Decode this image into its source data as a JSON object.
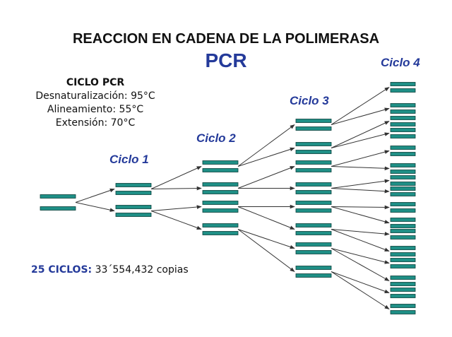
{
  "title": "REACCION EN CADENA DE LA POLIMERASA",
  "subtitle": "PCR",
  "conditions": {
    "heading": "CICLO PCR",
    "lines": [
      "Desnaturalización: 95°C",
      "Alineamiento: 55°C",
      "Extensión: 70°C"
    ]
  },
  "cycles": [
    "Ciclo 1",
    "Ciclo 2",
    "Ciclo 3",
    "Ciclo 4"
  ],
  "summary": {
    "label": "25 CICLOS:",
    "value": "33´554,432 copias"
  },
  "colors": {
    "strand": "#1f8f86",
    "strand_edge": "#0b3f3a",
    "accent": "#243a9a",
    "arrow": "#333333"
  }
}
